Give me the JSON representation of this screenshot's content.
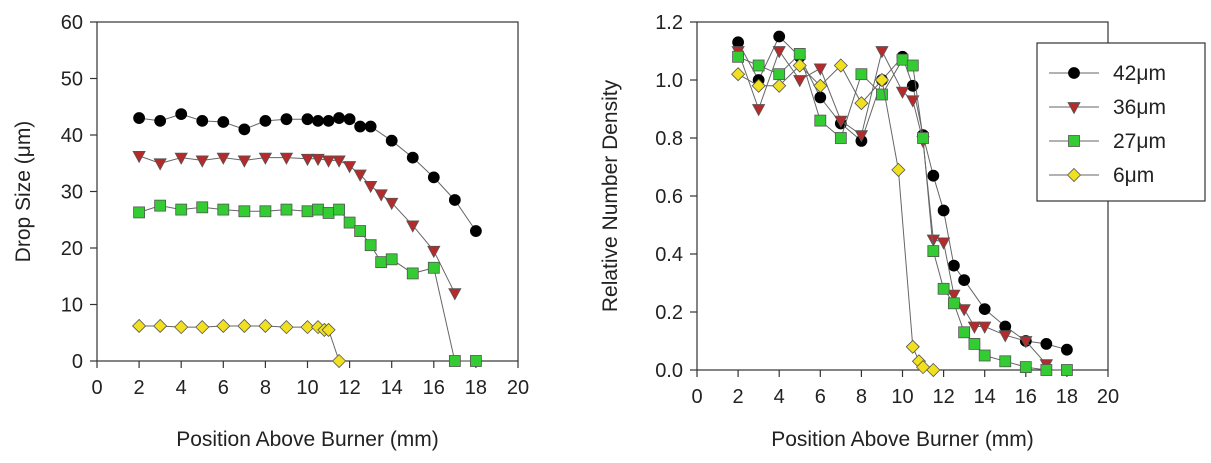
{
  "chart_data": [
    {
      "type": "line",
      "title": "",
      "xlabel": "Position Above Burner (mm)",
      "ylabel": "Drop Size (μm)",
      "xlim": [
        0,
        20
      ],
      "ylim": [
        0,
        60
      ],
      "xticks": [
        0,
        2,
        4,
        6,
        8,
        10,
        12,
        14,
        16,
        18,
        20
      ],
      "yticks": [
        0,
        10,
        20,
        30,
        40,
        50,
        60
      ],
      "grid": false,
      "series": [
        {
          "color": "#000000",
          "marker": "circle",
          "x": [
            2,
            3,
            4,
            5,
            6,
            7,
            8,
            9,
            10,
            10.5,
            11,
            11.5,
            12,
            12.5,
            13,
            14,
            15,
            16,
            17,
            18
          ],
          "y": [
            43,
            42.5,
            43.7,
            42.5,
            42.3,
            41,
            42.5,
            42.8,
            42.8,
            42.5,
            42.5,
            43,
            42.8,
            41.5,
            41.5,
            39,
            36,
            32.5,
            28.5,
            23
          ]
        },
        {
          "color": "#b52a2a",
          "marker": "triangle-down",
          "x": [
            2,
            3,
            4,
            5,
            6,
            7,
            8,
            9,
            10,
            10.5,
            11,
            11.5,
            12,
            12.5,
            13,
            13.5,
            14,
            15,
            16,
            17
          ],
          "y": [
            36.3,
            35,
            36,
            35.5,
            36,
            35.5,
            36,
            36,
            35.8,
            35.8,
            35.5,
            35.5,
            34.5,
            33,
            31,
            29.5,
            28,
            24,
            19.5,
            12
          ]
        },
        {
          "color": "#33cc33",
          "marker": "square",
          "x": [
            2,
            3,
            4,
            5,
            6,
            7,
            8,
            9,
            10,
            10.5,
            11,
            11.5,
            12,
            12.5,
            13,
            13.5,
            14,
            15,
            16,
            17,
            18
          ],
          "y": [
            26.3,
            27.5,
            26.8,
            27.2,
            26.8,
            26.5,
            26.5,
            26.8,
            26.5,
            26.8,
            26.2,
            26.8,
            24.5,
            23,
            20.5,
            17.5,
            18,
            15.5,
            16.5,
            0,
            0
          ]
        },
        {
          "color": "#f0e020",
          "marker": "diamond",
          "x": [
            2,
            3,
            4,
            5,
            6,
            7,
            8,
            9,
            10,
            10.5,
            10.8,
            11,
            11.5
          ],
          "y": [
            6.2,
            6.2,
            6,
            6,
            6.2,
            6.2,
            6.2,
            6,
            6,
            6,
            5.5,
            5.5,
            0
          ]
        }
      ]
    },
    {
      "type": "line",
      "title": "",
      "xlabel": "Position Above Burner (mm)",
      "ylabel": "Relative Number Density",
      "xlim": [
        0,
        20
      ],
      "ylim": [
        0,
        1.2
      ],
      "xticks": [
        0,
        2,
        4,
        6,
        8,
        10,
        12,
        14,
        16,
        18,
        20
      ],
      "yticks": [
        0.0,
        0.2,
        0.4,
        0.6,
        0.8,
        1.0,
        1.2
      ],
      "ytick_labels": [
        "0.0",
        "0.2",
        "0.4",
        "0.6",
        "0.8",
        "1.0",
        "1.2"
      ],
      "grid": false,
      "legend_position": "top-right",
      "series": [
        {
          "name": "42μm",
          "color": "#000000",
          "marker": "circle",
          "x": [
            2,
            3,
            4,
            5,
            6,
            7,
            8,
            9,
            10,
            10.5,
            11,
            11.5,
            12,
            12.5,
            13,
            14,
            15,
            16,
            17,
            18
          ],
          "y": [
            1.13,
            1.0,
            1.15,
            1.08,
            0.94,
            0.85,
            0.79,
            1.0,
            1.08,
            0.98,
            0.81,
            0.67,
            0.55,
            0.36,
            0.31,
            0.21,
            0.15,
            0.1,
            0.09,
            0.07
          ]
        },
        {
          "name": "36μm",
          "color": "#b52a2a",
          "marker": "triangle-down",
          "x": [
            2,
            3,
            4,
            5,
            6,
            7,
            8,
            9,
            10,
            10.5,
            11,
            11.5,
            12,
            12.5,
            13,
            13.5,
            14,
            15,
            16,
            17
          ],
          "y": [
            1.1,
            0.9,
            1.1,
            1.0,
            1.04,
            0.86,
            0.81,
            1.1,
            0.96,
            0.93,
            0.79,
            0.45,
            0.44,
            0.26,
            0.21,
            0.15,
            0.15,
            0.12,
            0.1,
            0.02
          ]
        },
        {
          "name": "27μm",
          "color": "#33cc33",
          "marker": "square",
          "x": [
            2,
            3,
            4,
            5,
            6,
            7,
            8,
            9,
            10,
            10.5,
            11,
            11.5,
            12,
            12.5,
            13,
            13.5,
            14,
            15,
            16,
            17,
            18
          ],
          "y": [
            1.08,
            1.05,
            1.02,
            1.09,
            0.86,
            0.8,
            1.02,
            0.95,
            1.07,
            1.05,
            0.8,
            0.41,
            0.28,
            0.23,
            0.13,
            0.09,
            0.05,
            0.03,
            0.01,
            0.0,
            0.0
          ]
        },
        {
          "name": "6μm",
          "color": "#f0e020",
          "marker": "diamond",
          "x": [
            2,
            3,
            4,
            5,
            6,
            7,
            8,
            9,
            9.8,
            10.5,
            10.8,
            11,
            11.5
          ],
          "y": [
            1.02,
            0.98,
            0.98,
            1.05,
            0.98,
            1.05,
            0.92,
            1.0,
            0.69,
            0.08,
            0.03,
            0.01,
            0.0
          ]
        }
      ]
    }
  ]
}
